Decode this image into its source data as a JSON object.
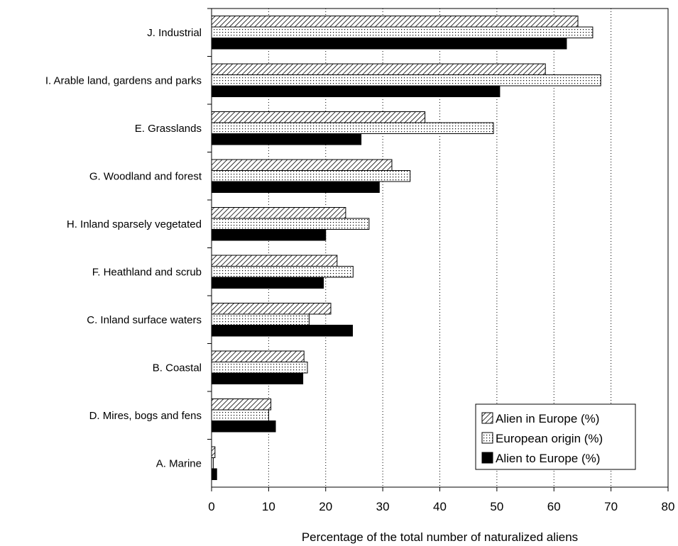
{
  "chart_data": {
    "type": "bar",
    "orientation": "horizontal",
    "categories": [
      "J. Industrial",
      "I. Arable land, gardens and parks",
      "E. Grasslands",
      "G. Woodland and forest",
      "H. Inland sparsely vegetated",
      "F. Heathland and scrub",
      "C. Inland surface waters",
      "B. Coastal",
      "D. Mires, bogs and fens",
      "A. Marine"
    ],
    "series": [
      {
        "name": "Alien in Europe (%)",
        "pattern": "hatch",
        "values": [
          64.2,
          58.5,
          37.4,
          31.6,
          23.5,
          22.0,
          20.9,
          16.2,
          10.4,
          0.6
        ]
      },
      {
        "name": "European origin (%)",
        "pattern": "dots",
        "values": [
          66.8,
          68.2,
          49.4,
          34.8,
          27.6,
          24.8,
          17.1,
          16.8,
          10.0,
          0.3
        ]
      },
      {
        "name": "Alien to Europe (%)",
        "pattern": "solid",
        "values": [
          62.2,
          50.5,
          26.2,
          29.4,
          20.0,
          19.6,
          24.7,
          16.0,
          11.2,
          0.9
        ]
      }
    ],
    "xlabel": "Percentage of the total number of naturalized aliens",
    "ylabel": "",
    "title": "",
    "xlim": [
      0,
      80
    ],
    "xticks": [
      0,
      10,
      20,
      30,
      40,
      50,
      60,
      70,
      80
    ],
    "grid": "vertical dotted",
    "legend_position": "bottom-right"
  }
}
